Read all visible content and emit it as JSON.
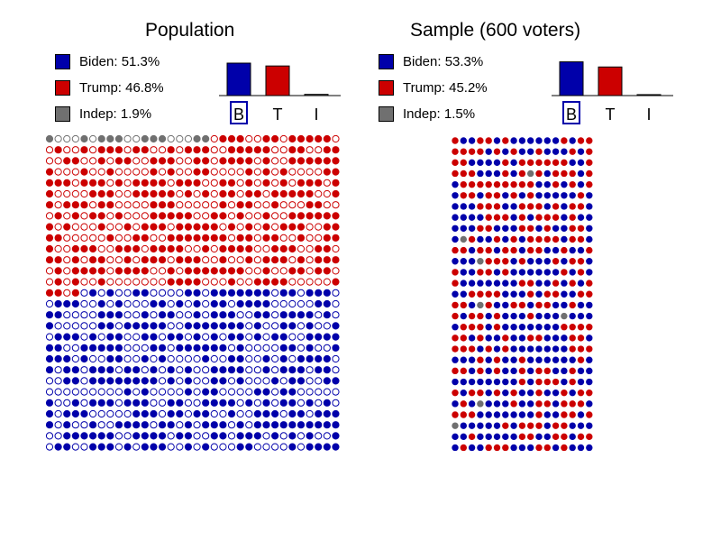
{
  "colors": {
    "biden": "#0000aa",
    "trump": "#cc0000",
    "indep": "#707070"
  },
  "chart_data": [
    {
      "type": "bar",
      "title": "Population",
      "legend": [
        {
          "key": "biden",
          "label": "Biden: 51.3%",
          "value": 51.3
        },
        {
          "key": "trump",
          "label": "Trump: 46.8%",
          "value": 46.8
        },
        {
          "key": "indep",
          "label": "Indep: 1.9%",
          "value": 1.9
        }
      ],
      "categories": [
        "B",
        "T",
        "I"
      ],
      "values": [
        51.3,
        46.8,
        1.9
      ],
      "highlighted_category": "B",
      "dot_grid": {
        "rows": 29,
        "cols": 34,
        "shape": "filled and hollow circles",
        "segments": [
          {
            "key": "indep",
            "share": 1.9
          },
          {
            "key": "trump",
            "share": 46.8
          },
          {
            "key": "biden",
            "share": 51.3
          }
        ]
      }
    },
    {
      "type": "bar",
      "title": "Sample (600 voters)",
      "legend": [
        {
          "key": "biden",
          "label": "Biden: 53.3%",
          "value": 53.3
        },
        {
          "key": "trump",
          "label": "Trump: 45.2%",
          "value": 45.2
        },
        {
          "key": "indep",
          "label": "Indep: 1.5%",
          "value": 1.5
        }
      ],
      "categories": [
        "B",
        "T",
        "I"
      ],
      "values": [
        53.3,
        45.2,
        1.5
      ],
      "highlighted_category": "B",
      "dot_grid": {
        "rows": 29,
        "cols": 17,
        "shape": "filled circles",
        "segments": [
          {
            "key": "biden",
            "share": 53.3
          },
          {
            "key": "trump",
            "share": 45.2
          },
          {
            "key": "indep",
            "share": 1.5
          }
        ]
      }
    }
  ]
}
